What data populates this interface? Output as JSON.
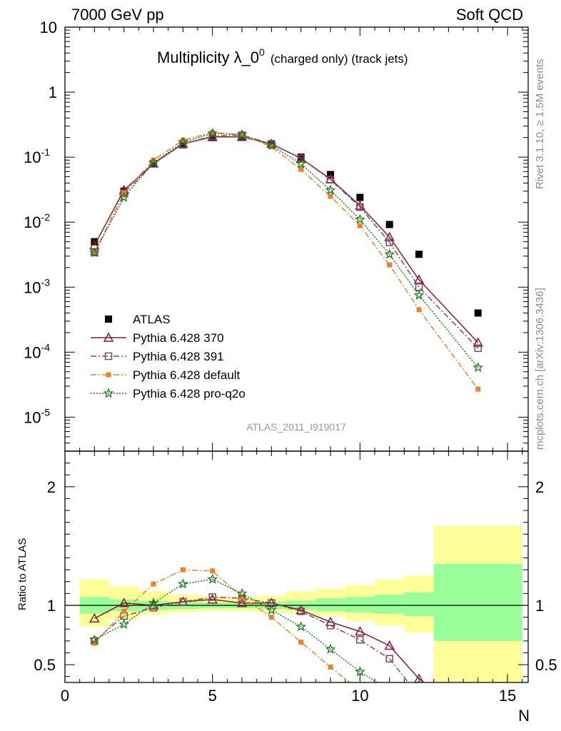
{
  "header": {
    "energy_label": "7000 GeV pp",
    "process_label": "Soft QCD"
  },
  "side_labels": {
    "rivet": "Rivet 3.1.10, ≥ 1.5M events",
    "mcplots": "mcplots.cern.ch [arXiv:1306.3436]"
  },
  "plot_title": {
    "main": "Multiplicity λ_0",
    "sup": "0",
    "suffix": "(charged only) (track jets)"
  },
  "analysis_id": "ATLAS_2011_I919017",
  "chart_data": [
    {
      "type": "line",
      "panel": "main",
      "yscale": "log",
      "xlim": [
        0,
        15.7
      ],
      "ylim": [
        3e-06,
        10
      ],
      "ytick_labels": [
        "10",
        "1",
        "10^-1",
        "10^-2",
        "10^-3",
        "10^-4",
        "10^-5"
      ],
      "legend_placement": "lower-left",
      "series": [
        {
          "name": "ATLAS",
          "color": "#000000",
          "marker": "filled-square",
          "line": "none",
          "x": [
            1,
            2,
            3,
            4,
            5,
            6,
            7,
            8,
            9,
            10,
            11,
            12,
            14
          ],
          "y": [
            0.005,
            0.03,
            0.08,
            0.155,
            0.2,
            0.21,
            0.16,
            0.1,
            0.054,
            0.024,
            0.0092,
            0.0032,
            0.0004
          ]
        },
        {
          "name": "Pythia 6.428 370",
          "color": "#8b1a2e",
          "marker": "open-triangle",
          "line": "solid",
          "x": [
            1,
            2,
            3,
            4,
            5,
            6,
            7,
            8,
            9,
            10,
            11,
            12,
            14
          ],
          "y": [
            0.0044,
            0.031,
            0.08,
            0.16,
            0.205,
            0.205,
            0.16,
            0.096,
            0.046,
            0.018,
            0.0059,
            0.0013,
            0.00014
          ]
        },
        {
          "name": "Pythia 6.428 391",
          "color": "#7a4a6a",
          "marker": "open-square",
          "line": "dashdot",
          "x": [
            1,
            2,
            3,
            4,
            5,
            6,
            7,
            8,
            9,
            10,
            11,
            12,
            14
          ],
          "y": [
            0.0034,
            0.028,
            0.079,
            0.16,
            0.212,
            0.218,
            0.16,
            0.096,
            0.045,
            0.017,
            0.0049,
            0.001,
            0.000115
          ]
        },
        {
          "name": "Pythia 6.428 default",
          "color": "#f07f2a",
          "marker": "filled-square-small",
          "line": "dashdot",
          "x": [
            1,
            2,
            3,
            4,
            5,
            6,
            7,
            8,
            9,
            10,
            11,
            12,
            14
          ],
          "y": [
            0.0034,
            0.028,
            0.09,
            0.182,
            0.24,
            0.22,
            0.144,
            0.065,
            0.025,
            0.0088,
            0.0022,
            0.00045,
            2.7e-05
          ]
        },
        {
          "name": "Pythia 6.428 pro-q2o",
          "color": "#1a7a1a",
          "marker": "open-star",
          "line": "dotted",
          "x": [
            1,
            2,
            3,
            4,
            5,
            6,
            7,
            8,
            9,
            10,
            11,
            12,
            14
          ],
          "y": [
            0.0034,
            0.024,
            0.082,
            0.17,
            0.232,
            0.222,
            0.152,
            0.079,
            0.031,
            0.011,
            0.0032,
            0.00075,
            5.8e-05
          ]
        }
      ]
    },
    {
      "type": "line",
      "panel": "ratio",
      "xlabel": "N",
      "ylabel": "Ratio to ATLAS",
      "xlim": [
        0,
        15.7
      ],
      "ylim": [
        0.35,
        2.3
      ],
      "xticks": [
        0,
        5,
        10,
        15
      ],
      "yticks": [
        0.5,
        1,
        2
      ],
      "reference_line": 1,
      "bands": [
        {
          "x": [
            0.5,
            1.5
          ],
          "yellow": [
            0.82,
            1.22
          ],
          "green": [
            0.93,
            1.07
          ]
        },
        {
          "x": [
            1.5,
            2.5
          ],
          "yellow": [
            0.88,
            1.16
          ],
          "green": [
            0.95,
            1.05
          ]
        },
        {
          "x": [
            2.5,
            3.5
          ],
          "yellow": [
            0.92,
            1.12
          ],
          "green": [
            0.96,
            1.04
          ]
        },
        {
          "x": [
            3.5,
            4.5
          ],
          "yellow": [
            0.94,
            1.09
          ],
          "green": [
            0.97,
            1.03
          ]
        },
        {
          "x": [
            4.5,
            5.5
          ],
          "yellow": [
            0.95,
            1.08
          ],
          "green": [
            0.975,
            1.025
          ]
        },
        {
          "x": [
            5.5,
            6.5
          ],
          "yellow": [
            0.95,
            1.07
          ],
          "green": [
            0.975,
            1.025
          ]
        },
        {
          "x": [
            6.5,
            7.5
          ],
          "yellow": [
            0.94,
            1.08
          ],
          "green": [
            0.97,
            1.03
          ]
        },
        {
          "x": [
            7.5,
            8.5
          ],
          "yellow": [
            0.93,
            1.12
          ],
          "green": [
            0.96,
            1.04
          ]
        },
        {
          "x": [
            8.5,
            9.5
          ],
          "yellow": [
            0.91,
            1.14
          ],
          "green": [
            0.95,
            1.06
          ]
        },
        {
          "x": [
            9.5,
            10.5
          ],
          "yellow": [
            0.87,
            1.17
          ],
          "green": [
            0.94,
            1.07
          ]
        },
        {
          "x": [
            10.5,
            11.5
          ],
          "yellow": [
            0.83,
            1.22
          ],
          "green": [
            0.93,
            1.09
          ]
        },
        {
          "x": [
            11.5,
            12.5
          ],
          "yellow": [
            0.77,
            1.25
          ],
          "green": [
            0.91,
            1.11
          ]
        },
        {
          "x": [
            12.5,
            15.5
          ],
          "yellow": [
            0.35,
            1.67
          ],
          "green": [
            0.7,
            1.35
          ]
        }
      ],
      "series": [
        {
          "name": "Pythia 6.428 370",
          "color": "#8b1a2e",
          "x": [
            1,
            2,
            3,
            4,
            5,
            6,
            7,
            8,
            9,
            10,
            11,
            12,
            13
          ],
          "y": [
            0.89,
            1.02,
            1.0,
            1.03,
            1.05,
            1.02,
            1.02,
            0.96,
            0.86,
            0.78,
            0.66,
            0.38,
            0.2
          ]
        },
        {
          "name": "Pythia 6.428 391",
          "color": "#7a4a6a",
          "x": [
            1,
            2,
            3,
            4,
            5,
            6,
            7,
            8,
            9,
            10,
            11,
            11.8
          ],
          "y": [
            0.7,
            0.91,
            0.98,
            1.03,
            1.07,
            1.06,
            1.02,
            0.95,
            0.83,
            0.71,
            0.55,
            0.3
          ]
        },
        {
          "name": "Pythia 6.428 default",
          "color": "#f07f2a",
          "x": [
            1,
            2,
            3,
            4,
            5,
            6,
            7,
            8,
            9,
            9.9
          ],
          "y": [
            0.68,
            0.95,
            1.18,
            1.3,
            1.29,
            1.07,
            0.9,
            0.69,
            0.48,
            0.3
          ]
        },
        {
          "name": "Pythia 6.428 pro-q2o",
          "color": "#1a7a1a",
          "x": [
            1,
            2,
            3,
            4,
            5,
            6,
            7,
            8,
            9,
            10,
            10.9
          ],
          "y": [
            0.71,
            0.84,
            1.02,
            1.18,
            1.22,
            1.1,
            0.96,
            0.82,
            0.63,
            0.44,
            0.3
          ]
        }
      ]
    }
  ]
}
